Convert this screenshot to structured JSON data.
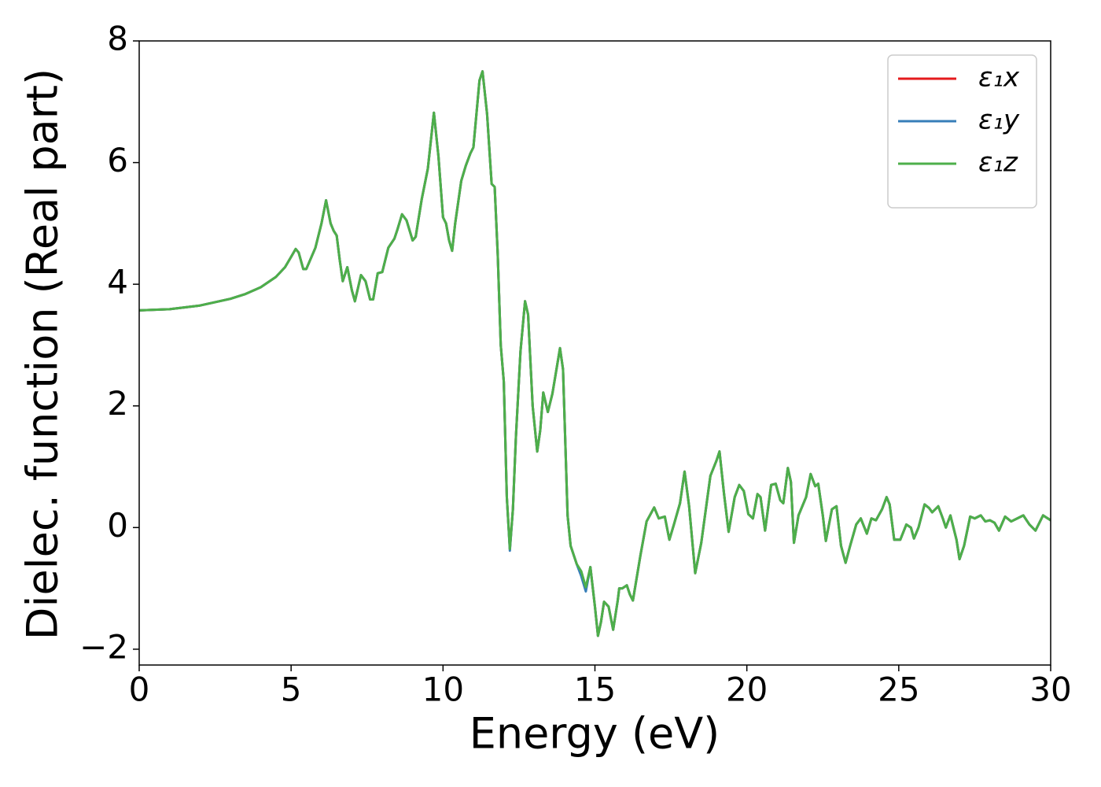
{
  "chart_data": {
    "type": "line",
    "xlabel": "Energy (eV)",
    "ylabel": "Dielec. function (Real part)",
    "x": [
      0,
      1,
      2,
      3,
      3.5,
      4,
      4.5,
      4.8,
      5.0,
      5.15,
      5.25,
      5.4,
      5.5,
      5.8,
      6.0,
      6.15,
      6.3,
      6.4,
      6.5,
      6.6,
      6.7,
      6.85,
      7.0,
      7.1,
      7.3,
      7.45,
      7.6,
      7.7,
      7.85,
      8.0,
      8.2,
      8.4,
      8.5,
      8.65,
      8.8,
      9.0,
      9.1,
      9.3,
      9.5,
      9.7,
      9.85,
      10.0,
      10.1,
      10.2,
      10.3,
      10.4,
      10.6,
      10.75,
      10.9,
      11.0,
      11.2,
      11.3,
      11.45,
      11.6,
      11.7,
      11.8,
      11.9,
      12.0,
      12.1,
      12.2,
      12.3,
      12.4,
      12.55,
      12.7,
      12.8,
      12.95,
      13.1,
      13.2,
      13.3,
      13.45,
      13.6,
      13.7,
      13.85,
      13.95,
      14.1,
      14.2,
      14.4,
      14.55,
      14.7,
      14.85,
      15.0,
      15.1,
      15.2,
      15.3,
      15.45,
      15.6,
      15.75,
      15.8,
      15.9,
      16.05,
      16.15,
      16.25,
      16.5,
      16.7,
      16.95,
      17.1,
      17.3,
      17.45,
      17.6,
      17.8,
      17.95,
      18.1,
      18.3,
      18.5,
      18.8,
      19.0,
      19.1,
      19.25,
      19.4,
      19.6,
      19.75,
      19.9,
      20.05,
      20.2,
      20.35,
      20.45,
      20.6,
      20.8,
      20.95,
      21.1,
      21.2,
      21.35,
      21.45,
      21.55,
      21.7,
      21.95,
      22.1,
      22.25,
      22.35,
      22.5,
      22.6,
      22.8,
      22.95,
      23.1,
      23.25,
      23.4,
      23.6,
      23.75,
      23.95,
      24.1,
      24.25,
      24.45,
      24.6,
      24.7,
      24.85,
      25.05,
      25.25,
      25.4,
      25.5,
      25.65,
      25.85,
      26.0,
      26.1,
      26.3,
      26.45,
      26.55,
      26.7,
      26.9,
      27.0,
      27.15,
      27.35,
      27.5,
      27.7,
      27.85,
      28.0,
      28.15,
      28.3,
      28.5,
      28.7,
      28.9,
      29.1,
      29.3,
      29.5,
      29.75,
      30
    ],
    "series": [
      {
        "name": "ε₁x",
        "color": "#e41a1c",
        "values": [
          3.57,
          3.59,
          3.65,
          3.76,
          3.84,
          3.95,
          4.12,
          4.28,
          4.45,
          4.58,
          4.52,
          4.25,
          4.25,
          4.6,
          5.0,
          5.38,
          5.0,
          4.88,
          4.8,
          4.4,
          4.05,
          4.28,
          3.9,
          3.72,
          4.15,
          4.05,
          3.75,
          3.75,
          4.18,
          4.2,
          4.6,
          4.75,
          4.9,
          5.15,
          5.05,
          4.72,
          4.78,
          5.4,
          5.9,
          6.82,
          6.1,
          5.1,
          5.0,
          4.72,
          4.55,
          5.0,
          5.7,
          5.95,
          6.15,
          6.25,
          7.35,
          7.5,
          6.8,
          5.65,
          5.6,
          4.5,
          3.0,
          2.4,
          0.5,
          -0.35,
          0.3,
          1.5,
          2.9,
          3.72,
          3.5,
          2.0,
          1.25,
          1.6,
          2.22,
          1.9,
          2.2,
          2.5,
          2.95,
          2.6,
          0.2,
          -0.3,
          -0.6,
          -0.75,
          -1.0,
          -0.65,
          -1.3,
          -1.78,
          -1.55,
          -1.22,
          -1.3,
          -1.68,
          -1.2,
          -1.0,
          -1.0,
          -0.95,
          -1.1,
          -1.2,
          -0.45,
          0.1,
          0.33,
          0.15,
          0.18,
          -0.2,
          0.05,
          0.4,
          0.92,
          0.35,
          -0.75,
          -0.25,
          0.85,
          1.1,
          1.25,
          0.55,
          -0.07,
          0.5,
          0.7,
          0.6,
          0.22,
          0.15,
          0.55,
          0.5,
          -0.05,
          0.7,
          0.72,
          0.45,
          0.4,
          0.98,
          0.75,
          -0.25,
          0.2,
          0.5,
          0.88,
          0.68,
          0.72,
          0.2,
          -0.22,
          0.3,
          0.35,
          -0.3,
          -0.58,
          -0.3,
          0.05,
          0.15,
          -0.1,
          0.15,
          0.12,
          0.3,
          0.5,
          0.38,
          -0.2,
          -0.2,
          0.05,
          0.0,
          -0.18,
          0.0,
          0.38,
          0.32,
          0.25,
          0.35,
          0.15,
          0.0,
          0.2,
          -0.2,
          -0.52,
          -0.3,
          0.18,
          0.15,
          0.2,
          0.1,
          0.12,
          0.08,
          -0.05,
          0.18,
          0.1,
          0.15,
          0.2,
          0.05,
          -0.05,
          0.2,
          0.12
        ]
      },
      {
        "name": "ε₁y",
        "color": "#377eb8",
        "values": [
          3.57,
          3.59,
          3.65,
          3.76,
          3.84,
          3.95,
          4.12,
          4.28,
          4.45,
          4.58,
          4.52,
          4.25,
          4.25,
          4.6,
          5.0,
          5.38,
          5.0,
          4.88,
          4.8,
          4.4,
          4.05,
          4.28,
          3.9,
          3.72,
          4.15,
          4.05,
          3.75,
          3.75,
          4.18,
          4.2,
          4.6,
          4.75,
          4.9,
          5.15,
          5.05,
          4.72,
          4.78,
          5.4,
          5.9,
          6.82,
          6.1,
          5.1,
          5.0,
          4.72,
          4.55,
          5.0,
          5.7,
          5.95,
          6.15,
          6.25,
          7.35,
          7.5,
          6.8,
          5.65,
          5.6,
          4.5,
          3.0,
          2.4,
          0.5,
          -0.38,
          0.3,
          1.5,
          2.9,
          3.72,
          3.5,
          2.0,
          1.25,
          1.6,
          2.22,
          1.9,
          2.2,
          2.5,
          2.95,
          2.6,
          0.2,
          -0.3,
          -0.6,
          -0.8,
          -1.05,
          -0.65,
          -1.3,
          -1.78,
          -1.55,
          -1.22,
          -1.3,
          -1.68,
          -1.2,
          -1.0,
          -1.0,
          -0.95,
          -1.1,
          -1.2,
          -0.45,
          0.1,
          0.33,
          0.15,
          0.18,
          -0.2,
          0.05,
          0.4,
          0.92,
          0.35,
          -0.75,
          -0.25,
          0.85,
          1.1,
          1.25,
          0.55,
          -0.07,
          0.5,
          0.7,
          0.6,
          0.22,
          0.15,
          0.55,
          0.5,
          -0.05,
          0.7,
          0.72,
          0.45,
          0.4,
          0.98,
          0.75,
          -0.25,
          0.2,
          0.5,
          0.88,
          0.68,
          0.72,
          0.2,
          -0.22,
          0.3,
          0.35,
          -0.3,
          -0.58,
          -0.3,
          0.05,
          0.15,
          -0.1,
          0.15,
          0.12,
          0.3,
          0.5,
          0.38,
          -0.2,
          -0.2,
          0.05,
          0.0,
          -0.18,
          0.0,
          0.38,
          0.32,
          0.25,
          0.35,
          0.15,
          0.0,
          0.2,
          -0.2,
          -0.52,
          -0.3,
          0.18,
          0.15,
          0.2,
          0.1,
          0.12,
          0.08,
          -0.05,
          0.18,
          0.1,
          0.15,
          0.2,
          0.05,
          -0.05,
          0.2,
          0.12
        ]
      },
      {
        "name": "ε₁z",
        "color": "#4daf4a",
        "values": [
          3.57,
          3.59,
          3.65,
          3.76,
          3.84,
          3.95,
          4.12,
          4.28,
          4.45,
          4.58,
          4.52,
          4.25,
          4.25,
          4.6,
          5.0,
          5.38,
          5.0,
          4.88,
          4.8,
          4.4,
          4.05,
          4.28,
          3.9,
          3.72,
          4.15,
          4.05,
          3.75,
          3.75,
          4.18,
          4.2,
          4.6,
          4.75,
          4.9,
          5.15,
          5.05,
          4.72,
          4.78,
          5.4,
          5.9,
          6.82,
          6.1,
          5.1,
          5.0,
          4.72,
          4.55,
          5.0,
          5.7,
          5.95,
          6.15,
          6.25,
          7.35,
          7.5,
          6.8,
          5.65,
          5.6,
          4.5,
          3.0,
          2.4,
          0.5,
          -0.35,
          0.3,
          1.5,
          2.9,
          3.72,
          3.5,
          2.0,
          1.25,
          1.6,
          2.22,
          1.9,
          2.2,
          2.5,
          2.95,
          2.6,
          0.2,
          -0.3,
          -0.6,
          -0.72,
          -0.98,
          -0.65,
          -1.3,
          -1.78,
          -1.55,
          -1.22,
          -1.3,
          -1.68,
          -1.2,
          -1.0,
          -1.0,
          -0.95,
          -1.1,
          -1.2,
          -0.45,
          0.1,
          0.33,
          0.15,
          0.18,
          -0.2,
          0.05,
          0.4,
          0.92,
          0.35,
          -0.75,
          -0.25,
          0.85,
          1.1,
          1.25,
          0.55,
          -0.07,
          0.5,
          0.7,
          0.6,
          0.22,
          0.15,
          0.55,
          0.5,
          -0.05,
          0.7,
          0.72,
          0.45,
          0.4,
          0.98,
          0.75,
          -0.25,
          0.2,
          0.5,
          0.88,
          0.68,
          0.72,
          0.2,
          -0.22,
          0.3,
          0.35,
          -0.3,
          -0.58,
          -0.3,
          0.05,
          0.15,
          -0.1,
          0.15,
          0.12,
          0.3,
          0.5,
          0.38,
          -0.2,
          -0.2,
          0.05,
          0.0,
          -0.18,
          0.0,
          0.38,
          0.32,
          0.25,
          0.35,
          0.15,
          0.0,
          0.2,
          -0.2,
          -0.52,
          -0.3,
          0.18,
          0.15,
          0.2,
          0.1,
          0.12,
          0.08,
          -0.05,
          0.18,
          0.1,
          0.15,
          0.2,
          0.05,
          -0.05,
          0.2,
          0.12
        ]
      }
    ],
    "xlim": [
      0,
      30
    ],
    "xticks": [
      0,
      5,
      10,
      15,
      20,
      25,
      30
    ],
    "ylim": [
      -2.26,
      8
    ],
    "yticks": [
      {
        "value": -2,
        "label": "−2"
      },
      0,
      2,
      4,
      6,
      8
    ],
    "grid": false,
    "legend": "upper right"
  }
}
